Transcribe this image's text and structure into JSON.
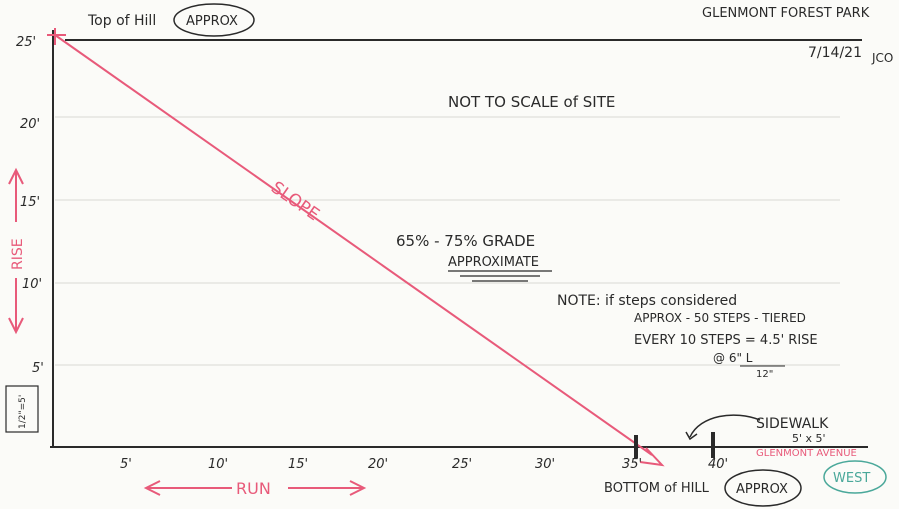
{
  "header": {
    "top_of_hill": "Top of Hill",
    "top_approx": "APPROX",
    "site_name": "GLENMONT FOREST PARK",
    "date": "7/14/21",
    "initials": "JCO"
  },
  "notes": {
    "not_to_scale": "NOT TO SCALE of SITE",
    "grade": "65% - 75% GRADE",
    "approximate": "APPROXIMATE",
    "note_line1": "NOTE: if steps considered",
    "note_line2": "APPROX - 50 STEPS - TIERED",
    "note_line3": "EVERY 10 STEPS = 4.5' RISE",
    "note_line4": "@ 6\" L",
    "note_line5": "12\""
  },
  "labels": {
    "slope": "SLOPE",
    "rise": "RISE",
    "run": "RUN",
    "scale": "1/2\"=5'",
    "sidewalk": "SIDEWALK",
    "sidewalk_size": "5' x 5'",
    "avenue": "GLENMONT AVENUE",
    "bottom_of_hill": "BOTTOM of HILL",
    "bottom_approx": "APPROX",
    "west": "WEST"
  },
  "y_ticks": [
    "25'",
    "20'",
    "15'",
    "10'",
    "5'"
  ],
  "x_ticks": [
    "5'",
    "10'",
    "15'",
    "20'",
    "25'",
    "30'",
    "35'",
    "40'"
  ],
  "colors": {
    "ink": "#2a2a2a",
    "pink": "#e85a7a",
    "teal": "#4aa89a",
    "rule": "#d9d9d4"
  }
}
